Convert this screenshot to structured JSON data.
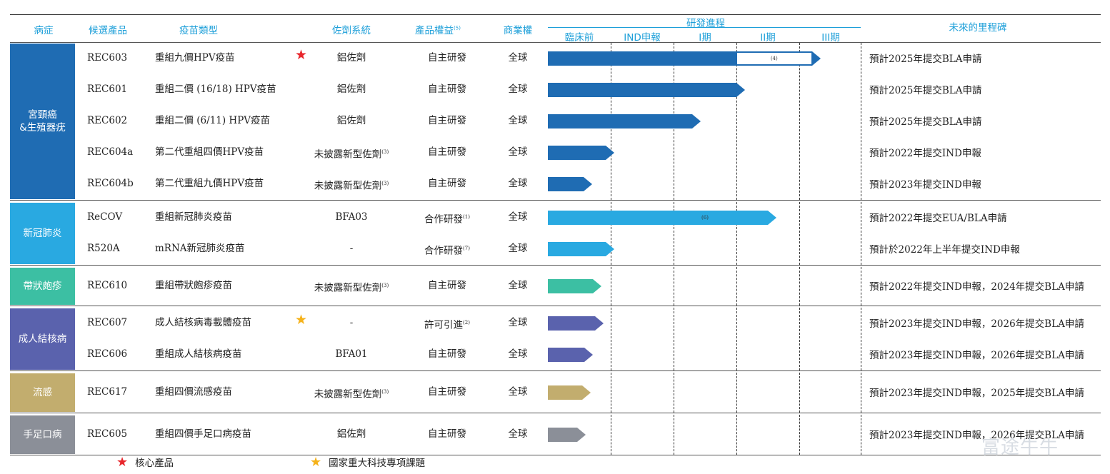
{
  "headers": {
    "disease": "病症",
    "candidate": "候選產品",
    "vaccine_type": "疫苗類型",
    "adjuvant": "佐劑系統",
    "rights": "產品權益",
    "rights_note": "(5)",
    "commercial": "商業權",
    "progress": "研發進程",
    "milestones": "未來的里程碑",
    "stages": [
      "臨床前",
      "IND申報",
      "I期",
      "II期",
      "III期"
    ]
  },
  "colors": {
    "cervical": "#1f6cb3",
    "covid": "#29a9e1",
    "shingles": "#3cbfa3",
    "tb": "#5a62ad",
    "flu": "#c2ad6e",
    "hfmd": "#8b8f98",
    "star_red": "#e8262c",
    "star_gold": "#f5b21a"
  },
  "groups": [
    {
      "key": "cervical",
      "label_lines": [
        "宮頸癌",
        "&生殖器疣"
      ],
      "color": "#1f6cb3",
      "rows": [
        {
          "code": "REC603",
          "type": "重組九價HPV疫苗",
          "star": "red",
          "adjuvant": "鋁佐劑",
          "adjuvant_note": "",
          "rights": "自主研發",
          "rights_note": "",
          "commercial": "全球",
          "progress": 4.2,
          "complete_until": 3.0,
          "segment_note": "(4)",
          "milestone": "預計2025年提交BLA申請"
        },
        {
          "code": "REC601",
          "type": "重組二價 (16/18) HPV疫苗",
          "star": "",
          "adjuvant": "鋁佐劑",
          "adjuvant_note": "",
          "rights": "自主研發",
          "rights_note": "",
          "commercial": "全球",
          "progress": 3.0,
          "milestone": "預計2025年提交BLA申請"
        },
        {
          "code": "REC602",
          "type": "重組二價 (6/11) HPV疫苗",
          "star": "",
          "adjuvant": "鋁佐劑",
          "adjuvant_note": "",
          "rights": "自主研發",
          "rights_note": "",
          "commercial": "全球",
          "progress": 2.3,
          "milestone": "預計2025年提交BLA申請"
        },
        {
          "code": "REC604a",
          "type": "第二代重組四價HPV疫苗",
          "star": "",
          "adjuvant": "未披露新型佐劑",
          "adjuvant_note": "(3)",
          "rights": "自主研發",
          "rights_note": "",
          "commercial": "全球",
          "progress": 0.92,
          "milestone": "預計2022年提交IND申報"
        },
        {
          "code": "REC604b",
          "type": "第二代重組九價HPV疫苗",
          "star": "",
          "adjuvant": "未披露新型佐劑",
          "adjuvant_note": "(3)",
          "rights": "自主研發",
          "rights_note": "",
          "commercial": "全球",
          "progress": 0.57,
          "milestone": "預計2023年提交IND申報"
        }
      ]
    },
    {
      "key": "covid",
      "label_lines": [
        "新冠肺炎"
      ],
      "color": "#29a9e1",
      "rows": [
        {
          "code": "ReCOV",
          "type": "重組新冠肺炎疫苗",
          "star": "",
          "adjuvant": "BFA03",
          "adjuvant_note": "",
          "rights": "合作研發",
          "rights_note": "(1)",
          "commercial": "全球",
          "progress": 3.5,
          "inline_note": "(6)",
          "milestone": "預計2022年提交EUA/BLA申請"
        },
        {
          "code": "R520A",
          "type": "mRNA新冠肺炎疫苗",
          "star": "",
          "adjuvant": "-",
          "adjuvant_note": "",
          "rights": "合作研發",
          "rights_note": "(7)",
          "commercial": "全球",
          "progress": 0.92,
          "milestone": "預計於2022年上半年提交IND申報"
        }
      ]
    },
    {
      "key": "shingles",
      "label_lines": [
        "帶狀皰疹"
      ],
      "color": "#3cbfa3",
      "rows": [
        {
          "code": "REC610",
          "type": "重組帶狀皰疹疫苗",
          "star": "",
          "adjuvant": "未披露新型佐劑",
          "adjuvant_note": "(3)",
          "rights": "自主研發",
          "rights_note": "",
          "commercial": "全球",
          "progress": 0.72,
          "milestone": "預計2022年提交IND申報，2024年提交BLA申請"
        }
      ]
    },
    {
      "key": "tb",
      "label_lines": [
        "成人結核病"
      ],
      "color": "#5a62ad",
      "rows": [
        {
          "code": "REC607",
          "type": "成人結核病毒載體疫苗",
          "star": "gold",
          "adjuvant": "-",
          "adjuvant_note": "",
          "rights": "許可引進",
          "rights_note": "(2)",
          "commercial": "全球",
          "progress": 0.75,
          "milestone": "預計2023年提交IND申報，2026年提交BLA申請"
        },
        {
          "code": "REC606",
          "type": "重組成人結核病疫苗",
          "star": "",
          "adjuvant": "BFA01",
          "adjuvant_note": "",
          "rights": "自主研發",
          "rights_note": "",
          "commercial": "全球",
          "progress": 0.58,
          "milestone": "預計2023年提交IND申報，2026年提交BLA申請"
        }
      ]
    },
    {
      "key": "flu",
      "label_lines": [
        "流感"
      ],
      "color": "#c2ad6e",
      "rows": [
        {
          "code": "REC617",
          "type": "重組四價流感疫苗",
          "star": "",
          "adjuvant": "未披露新型佐劑",
          "adjuvant_note": "(3)",
          "rights": "自主研發",
          "rights_note": "",
          "commercial": "全球",
          "progress": 0.54,
          "milestone": "預計2023年提交IND申報，2025年提交BLA申請"
        }
      ]
    },
    {
      "key": "hfmd",
      "label_lines": [
        "手足口病"
      ],
      "color": "#8b8f98",
      "rows": [
        {
          "code": "REC605",
          "type": "重組四價手足口病疫苗",
          "star": "",
          "adjuvant": "鋁佐劑",
          "adjuvant_note": "",
          "rights": "自主研發",
          "rights_note": "",
          "commercial": "全球",
          "progress": 0.47,
          "milestone": "預計2023年提交IND申報，2026年提交BLA申請"
        }
      ]
    }
  ],
  "legend": {
    "core_product": "核心產品",
    "national_project": "國家重大科技專項課題"
  },
  "watermark": "富途牛牛"
}
